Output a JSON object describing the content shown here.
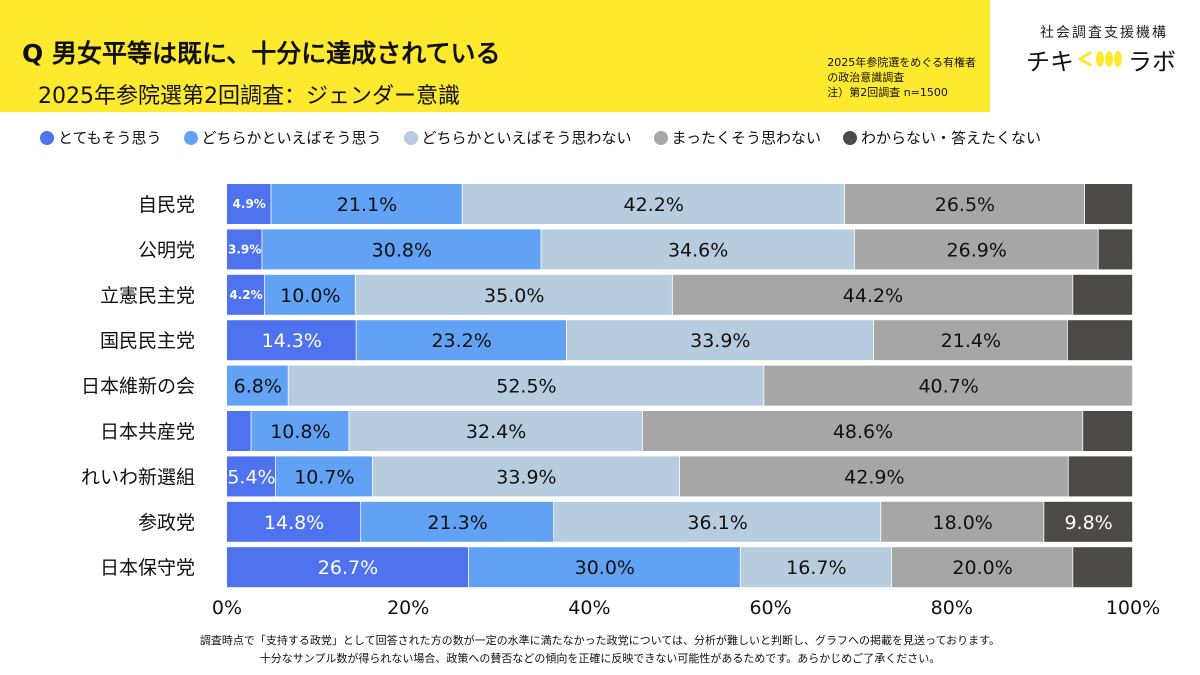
{
  "header": {
    "title": "Q 男女平等は既に、十分に達成されている",
    "subtitle": "2025年参院選第2回調査：ジェンダー意識",
    "survey_note_line1": "2025年参院選をめぐる有権者",
    "survey_note_line2": "の政治意識調査",
    "survey_note_line3": "注）第2回調査 n=1500",
    "org_name": "社会調査支援機構",
    "logo_left": "チキ",
    "logo_right": "ラボ"
  },
  "colors": {
    "header_bg": "#fde92e",
    "s1": "#4f73ee",
    "s2": "#62a2f4",
    "s3": "#b8cce0",
    "s4": "#a6a6a6",
    "s5": "#4d4949",
    "logo_yellow": "#fde92e"
  },
  "chart_data": {
    "type": "bar",
    "orientation": "horizontal",
    "stacked": true,
    "categories": [
      "自民党",
      "公明党",
      "立憲民主党",
      "国民民主党",
      "日本維新の会",
      "日本共産党",
      "れいわ新選組",
      "参政党",
      "日本保守党"
    ],
    "series": [
      {
        "name": "とてもそう思う",
        "values": [
          4.9,
          3.9,
          4.2,
          14.3,
          0.0,
          2.7,
          5.4,
          14.8,
          26.7
        ],
        "labels": [
          "4.9%",
          "3.9%",
          "4.2%",
          "14.3%",
          "",
          "",
          "5.4%",
          "14.8%",
          "26.7%"
        ]
      },
      {
        "name": "どちらかといえばそう思う",
        "values": [
          21.1,
          30.8,
          10.0,
          23.2,
          6.8,
          10.8,
          10.7,
          21.3,
          30.0
        ],
        "labels": [
          "21.1%",
          "30.8%",
          "10.0%",
          "23.2%",
          "6.8%",
          "10.8%",
          "10.7%",
          "21.3%",
          "30.0%"
        ]
      },
      {
        "name": "どちらかといえばそう思わない",
        "values": [
          42.2,
          34.6,
          35.0,
          33.9,
          52.5,
          32.4,
          33.9,
          36.1,
          16.7
        ],
        "labels": [
          "42.2%",
          "34.6%",
          "35.0%",
          "33.9%",
          "52.5%",
          "32.4%",
          "33.9%",
          "36.1%",
          "16.7%"
        ]
      },
      {
        "name": "まったくそう思わない",
        "values": [
          26.5,
          26.9,
          44.2,
          21.4,
          40.7,
          48.6,
          42.9,
          18.0,
          20.0
        ],
        "labels": [
          "26.5%",
          "26.9%",
          "44.2%",
          "21.4%",
          "40.7%",
          "48.6%",
          "42.9%",
          "18.0%",
          "20.0%"
        ]
      },
      {
        "name": "わからない・答えたくない",
        "values": [
          5.3,
          3.8,
          6.6,
          7.2,
          0.0,
          5.5,
          7.1,
          9.8,
          6.6
        ],
        "labels": [
          "",
          "",
          "",
          "",
          "",
          "",
          "",
          "9.8%",
          ""
        ]
      }
    ],
    "xlim": [
      0,
      100
    ],
    "xticks": [
      "0%",
      "20%",
      "40%",
      "60%",
      "80%",
      "100%"
    ],
    "legend": "top"
  },
  "footnote": {
    "line1": "調査時点で「支持する政党」として回答された方の数が一定の水準に満たなかった政党については、分析が難しいと判断し、グラフへの掲載を見送っております。",
    "line2": "十分なサンプル数が得られない場合、政策への賛否などの傾向を正確に反映できない可能性があるためです。あらかじめご了承ください。"
  }
}
